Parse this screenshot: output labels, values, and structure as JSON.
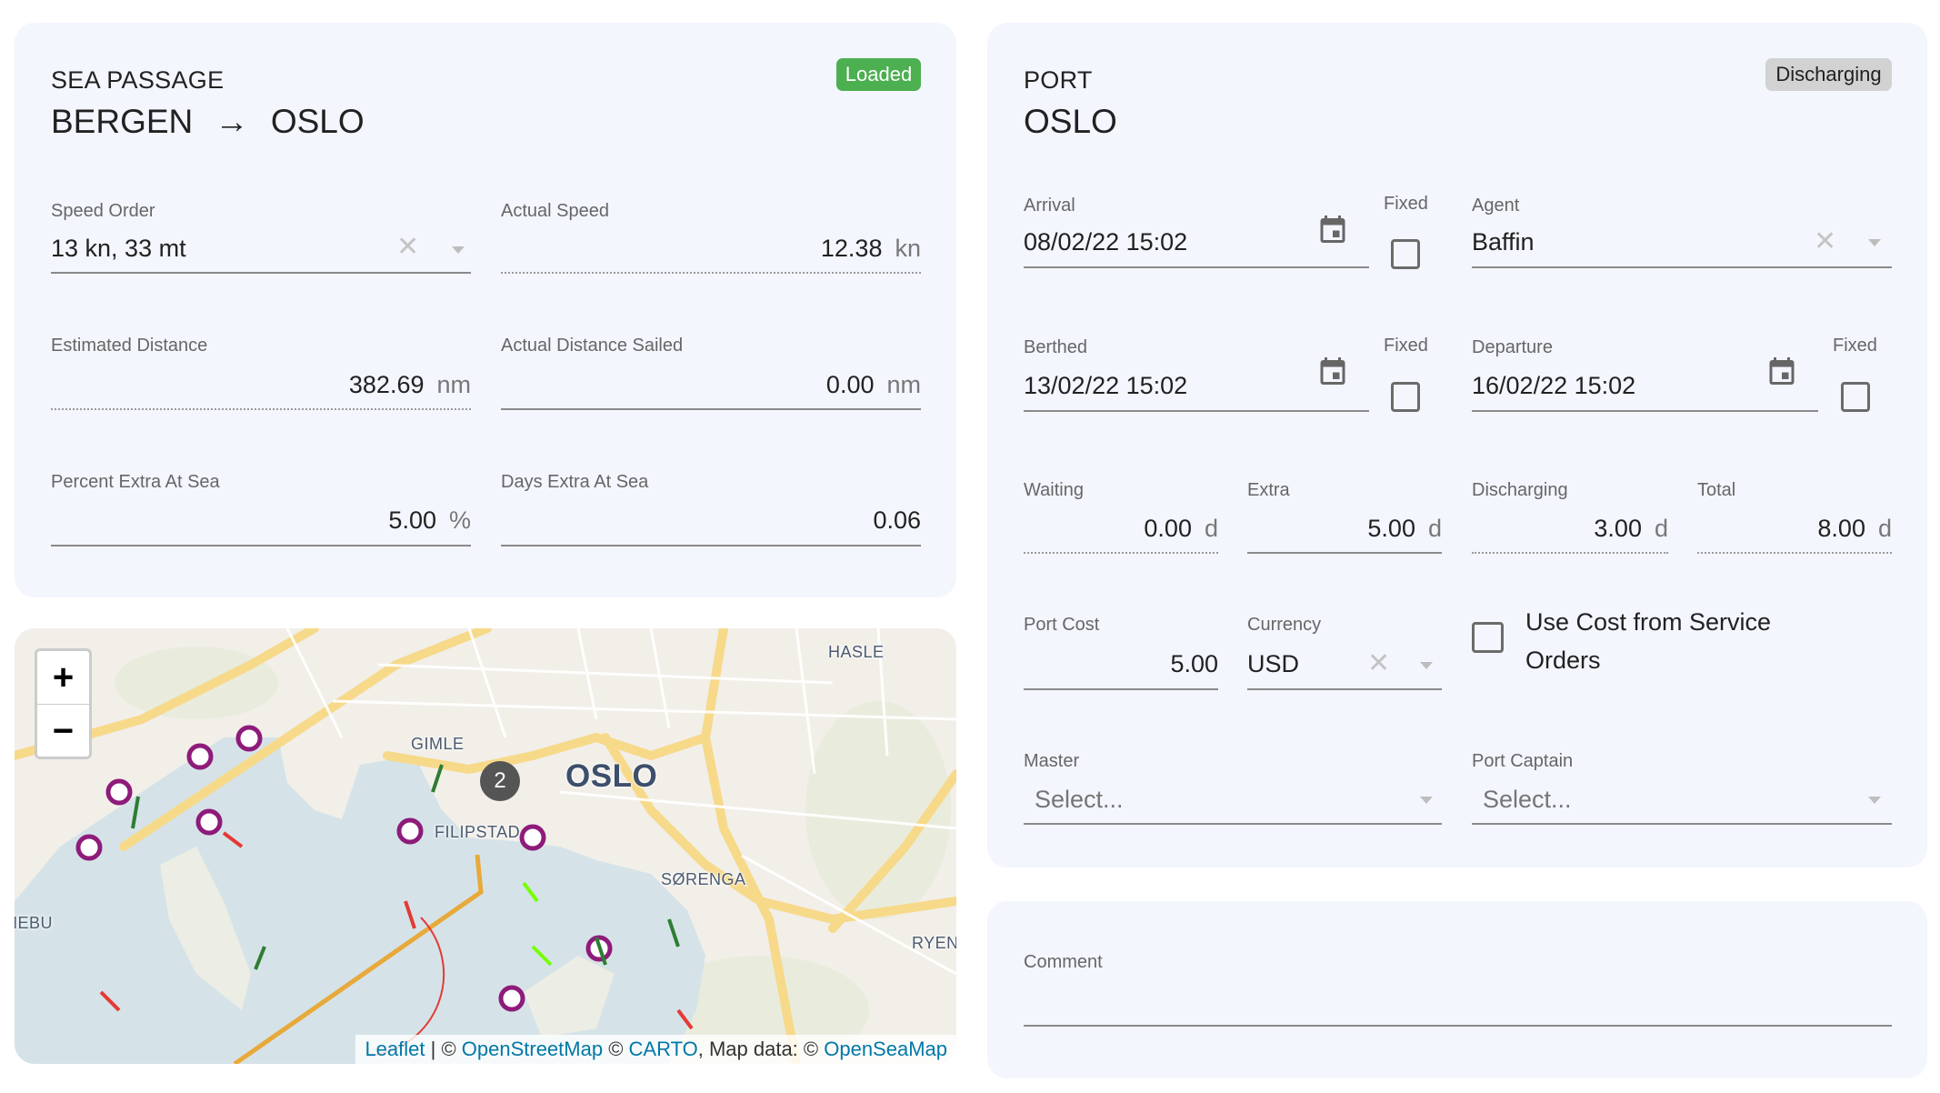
{
  "sea_passage": {
    "kicker": "SEA PASSAGE",
    "from": "BERGEN",
    "arrow": "→",
    "to": "OSLO",
    "status_badge": "Loaded",
    "status_color": "#4caf50",
    "speed_order": {
      "label": "Speed Order",
      "value": "13 kn, 33 mt"
    },
    "actual_speed": {
      "label": "Actual Speed",
      "value": "12.38",
      "unit": "kn"
    },
    "estimated_distance": {
      "label": "Estimated Distance",
      "value": "382.69",
      "unit": "nm"
    },
    "actual_distance": {
      "label": "Actual Distance Sailed",
      "value": "0.00",
      "unit": "nm"
    },
    "percent_extra": {
      "label": "Percent Extra At Sea",
      "value": "5.00",
      "unit": "%"
    },
    "days_extra": {
      "label": "Days Extra At Sea",
      "value": "0.06"
    }
  },
  "map": {
    "zoom_in": "+",
    "zoom_out": "−",
    "cluster_count": "2",
    "labels": {
      "hasle": "HASLE",
      "gimle": "GIMLE",
      "oslo": "OSLO",
      "filipstad": "FILIPSTAD",
      "sorenga": "SØRENGA",
      "ryen": "RYEN",
      "nebu": "NEBU"
    },
    "attribution": {
      "leaflet": "Leaflet",
      "sep": " | © ",
      "osm": "OpenStreetMap",
      "c1": " © ",
      "carto": "CARTO",
      "c2": ", Map data: © ",
      "openseamap": "OpenSeaMap"
    }
  },
  "port": {
    "kicker": "PORT",
    "name": "OSLO",
    "status_badge": "Discharging",
    "arrival": {
      "label": "Arrival",
      "value": "08/02/22 15:02",
      "fixed_label": "Fixed",
      "fixed": false
    },
    "agent": {
      "label": "Agent",
      "value": "Baffin"
    },
    "berthed": {
      "label": "Berthed",
      "value": "13/02/22 15:02",
      "fixed_label": "Fixed",
      "fixed": false
    },
    "departure": {
      "label": "Departure",
      "value": "16/02/22 15:02",
      "fixed_label": "Fixed",
      "fixed": false
    },
    "waiting": {
      "label": "Waiting",
      "value": "0.00",
      "unit": "d"
    },
    "extra": {
      "label": "Extra",
      "value": "5.00",
      "unit": "d"
    },
    "discharging": {
      "label": "Discharging",
      "value": "3.00",
      "unit": "d"
    },
    "total": {
      "label": "Total",
      "value": "8.00",
      "unit": "d"
    },
    "port_cost": {
      "label": "Port Cost",
      "value": "5.00"
    },
    "currency": {
      "label": "Currency",
      "value": "USD"
    },
    "use_cost_service": {
      "label_line1": "Use Cost from Service",
      "label_line2": "Orders",
      "checked": false
    },
    "master": {
      "label": "Master",
      "placeholder": "Select..."
    },
    "port_captain": {
      "label": "Port Captain",
      "placeholder": "Select..."
    }
  },
  "comment": {
    "label": "Comment",
    "value": ""
  }
}
